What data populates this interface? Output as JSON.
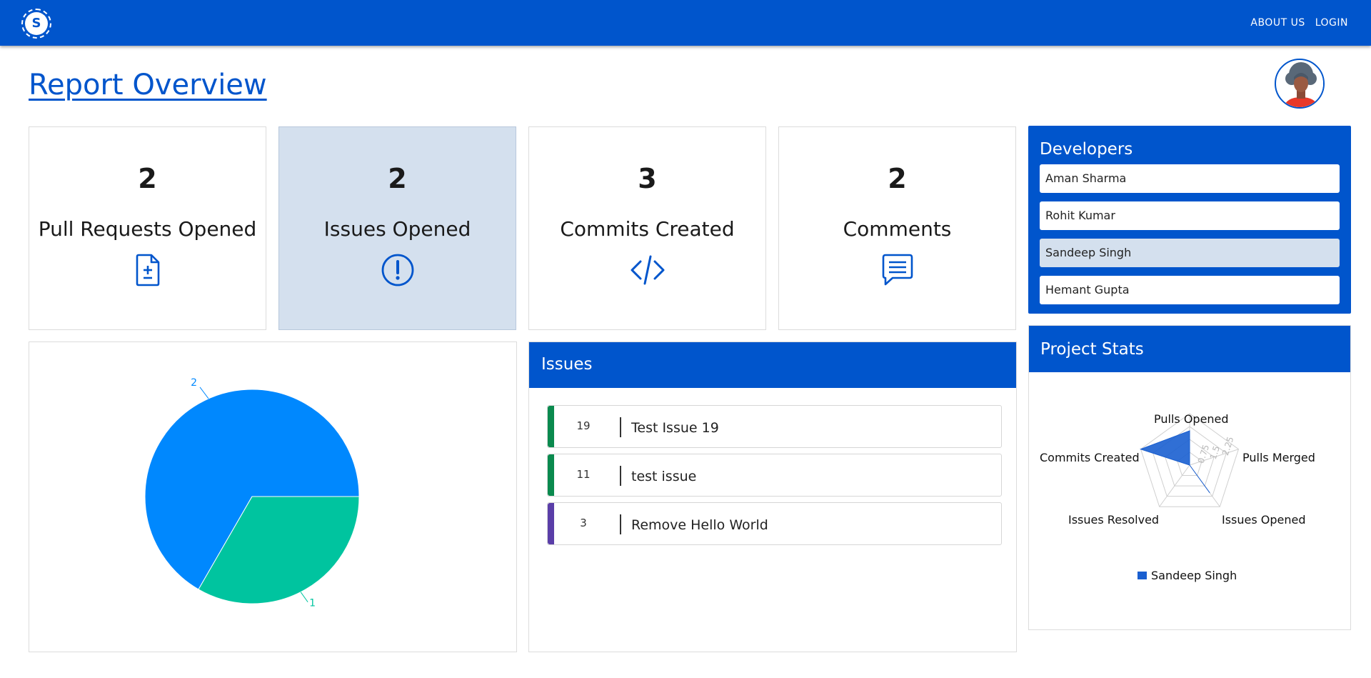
{
  "nav": {
    "logo_letter": "S",
    "links": [
      "ABOUT US",
      "LOGIN"
    ]
  },
  "page": {
    "title": "Report Overview"
  },
  "stats": [
    {
      "value": "2",
      "label": "Pull Requests Opened",
      "icon": "file-diff-icon"
    },
    {
      "value": "2",
      "label": "Issues Opened",
      "icon": "alert-circle-icon"
    },
    {
      "value": "3",
      "label": "Commits Created",
      "icon": "code-icon"
    },
    {
      "value": "2",
      "label": "Comments",
      "icon": "chat-icon"
    }
  ],
  "developers": {
    "title": "Developers",
    "items": [
      "Aman Sharma",
      "Rohit Kumar",
      "Sandeep Singh",
      "Hemant Gupta"
    ],
    "selected": "Sandeep Singh"
  },
  "issues": {
    "title": "Issues",
    "items": [
      {
        "number": "19",
        "title": "Test Issue 19",
        "color": "#0a8a4e"
      },
      {
        "number": "11",
        "title": "test issue",
        "color": "#0a8a4e"
      },
      {
        "number": "3",
        "title": "Remove Hello World",
        "color": "#5a3ea8"
      }
    ]
  },
  "project_stats": {
    "title": "Project Stats",
    "axes": [
      "Pulls Opened",
      "Pulls Merged",
      "Issues Opened",
      "Issues Resolved",
      "Commits Created"
    ],
    "tick_labels": [
      "0.75",
      "1.5",
      "2.25"
    ],
    "legend": "Sandeep Singh"
  },
  "colors": {
    "primary": "#0055cc",
    "pie_blue": "#0088fe",
    "pie_green": "#00c49f",
    "radar_fill": "#1a5fd0"
  },
  "chart_data": [
    {
      "type": "pie",
      "labels": [
        "",
        ""
      ],
      "values": [
        2,
        1
      ],
      "data_labels": [
        "2",
        "1"
      ],
      "colors": [
        "#0088fe",
        "#00c49f"
      ]
    },
    {
      "type": "radar",
      "axes": [
        "Pulls Opened",
        "Pulls Merged",
        "Issues Opened",
        "Issues Resolved",
        "Commits Created"
      ],
      "series": [
        {
          "name": "Sandeep Singh",
          "values": [
            2,
            0,
            2,
            0,
            3
          ]
        }
      ],
      "rlim": [
        0,
        3
      ]
    }
  ]
}
